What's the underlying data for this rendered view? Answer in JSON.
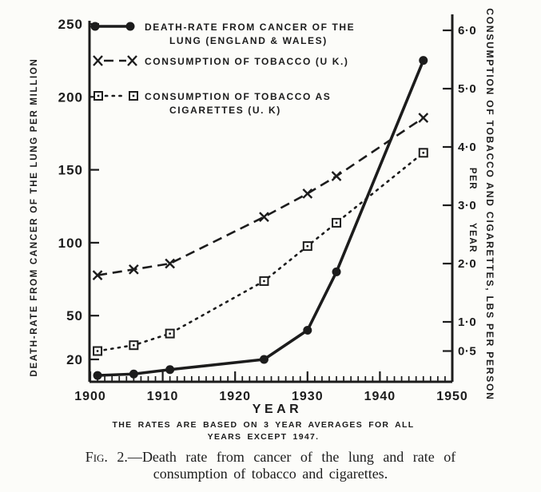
{
  "figure": {
    "legend": [
      {
        "marker": "filled-circle-solid-line",
        "line1": "DEATH-RATE FROM CANCER OF THE",
        "line2": "LUNG  (ENGLAND  &  WALES)"
      },
      {
        "marker": "x-dashed-line",
        "line1": "CONSUMPTION  OF  TOBACCO (U K.)",
        "line2": ""
      },
      {
        "marker": "open-square-dotted-line",
        "line1": "CONSUMPTION  OF  TOBACCO  AS",
        "line2": "CIGARETTES  (U. K)"
      }
    ]
  },
  "chart_data": {
    "type": "line",
    "title": "",
    "x": [
      1901,
      1906,
      1911,
      1924,
      1930,
      1934,
      1946
    ],
    "series": [
      {
        "name": "DEATH-RATE FROM CANCER OF THE LUNG (ENGLAND & WALES)",
        "axis": "left",
        "style": "solid",
        "marker": "circle",
        "values": [
          9,
          10,
          13,
          20,
          40,
          80,
          225
        ]
      },
      {
        "name": "CONSUMPTION OF TOBACCO (U K.)",
        "axis": "right",
        "style": "dashed",
        "marker": "x",
        "values": [
          1.8,
          1.9,
          2.0,
          2.8,
          3.2,
          3.5,
          4.5
        ]
      },
      {
        "name": "CONSUMPTION OF TOBACCO AS CIGARETTES (U. K)",
        "axis": "right",
        "style": "dotted",
        "marker": "square",
        "values": [
          0.5,
          0.6,
          0.8,
          1.7,
          2.3,
          2.7,
          3.9
        ]
      }
    ],
    "x_axis": {
      "label": "YEAR",
      "min": 1900,
      "max": 1950,
      "major_ticks": [
        1900,
        1910,
        1920,
        1930,
        1940,
        1950
      ],
      "minor_tick_every_years": 1
    },
    "left_axis": {
      "label": "DEATH-RATE FROM CANCER OF THE LUNG PER MILLION",
      "ticks": [
        250,
        200,
        150,
        100,
        50,
        20
      ],
      "range": [
        0,
        250
      ],
      "grid": false
    },
    "right_axis": {
      "label": "CONSUMPTION OF TOBACCO AND CIGARETTES, LBS PER PERSON",
      "label2_lines": [
        "PER",
        "YEAR"
      ],
      "ticks": [
        6.0,
        5.0,
        4.0,
        3.0,
        2.0,
        1.0,
        0.5
      ],
      "tick_labels": [
        "6·0",
        "5·0",
        "4·0",
        "3·0",
        "2·0",
        "1·0",
        "0·5"
      ],
      "range": [
        0,
        6.3
      ],
      "grid": false
    },
    "legend_position": "top-left-inside"
  },
  "note": {
    "line1": "THE RATES ARE BASED ON 3 YEAR AVERAGES FOR ALL",
    "line2": "YEARS  EXCEPT  1947."
  },
  "caption": {
    "fig_label": "Fig. 2.—",
    "line1_rest": "Death rate from cancer of the lung and rate of",
    "line2": "consumption of tobacco and cigarettes."
  }
}
